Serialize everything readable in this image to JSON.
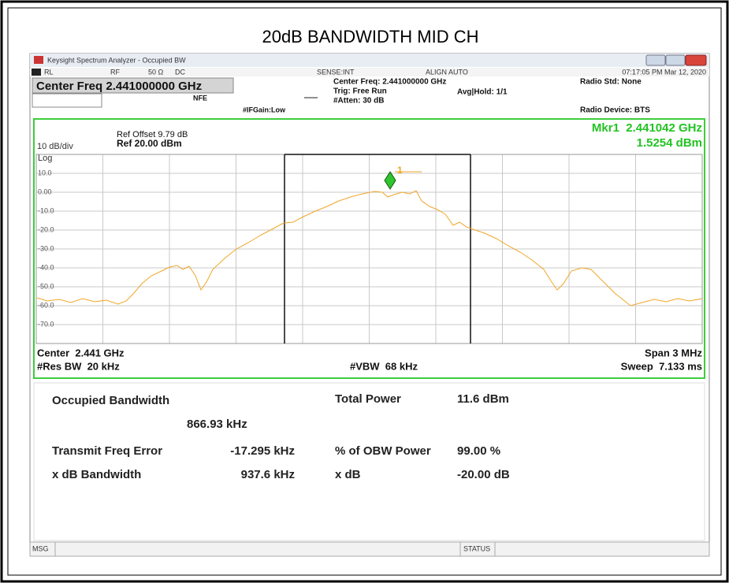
{
  "page_title": "20dB BANDWIDTH MID CH",
  "window": {
    "title": "Keysight Spectrum Analyzer - Occupied BW"
  },
  "status_row": {
    "rl": "RL",
    "rf": "RF",
    "impedance": "50 Ω",
    "coupling": "DC",
    "sense": "SENSE:INT",
    "align": "ALIGN AUTO",
    "timestamp": "07:17:05 PM Mar 12, 2020"
  },
  "settings": {
    "center_freq": "Center Freq 2.441000000 GHz",
    "nfe": "NFE",
    "if_gain": "#IFGain:Low",
    "center_freq_info": "Center Freq: 2.441000000 GHz",
    "trig": "Trig: Free Run",
    "atten": "#Atten: 30 dB",
    "avg_hold": "Avg|Hold: 1/1",
    "radio_std": "Radio Std: None",
    "radio_device": "Radio Device: BTS"
  },
  "graph": {
    "ref_offset": "Ref Offset 9.79 dB",
    "ref_level": "Ref 20.00 dBm",
    "scale": "10 dB/div",
    "scale_type": "Log",
    "marker_freq": "Mkr1  2.441042 GHz",
    "marker_level": "1.5254 dBm",
    "marker_id": "1",
    "y_labels": [
      "10.0",
      "0.00",
      "-10.0",
      "-20.0",
      "-30.0",
      "-40.0",
      "-50.0",
      "-60.0",
      "-70.0"
    ],
    "center": "Center  2.441 GHz",
    "res_bw": "#Res BW  20 kHz",
    "vbw": "#VBW  68 kHz",
    "span": "Span 3 MHz",
    "sweep": "Sweep  7.133 ms"
  },
  "results": {
    "obw_label": "Occupied Bandwidth",
    "obw_value": "866.93 kHz",
    "total_power_label": "Total Power",
    "total_power_value": "11.6 dBm",
    "freq_error_label": "Transmit Freq Error",
    "freq_error_value": "-17.295 kHz",
    "obw_power_label": "% of OBW Power",
    "obw_power_value": "99.00 %",
    "xdb_bw_label": "x dB Bandwidth",
    "xdb_bw_value": "937.6 kHz",
    "xdb_label": "x dB",
    "xdb_value": "-20.00 dB"
  },
  "status_bar": {
    "msg": "MSG",
    "status": "STATUS"
  }
}
